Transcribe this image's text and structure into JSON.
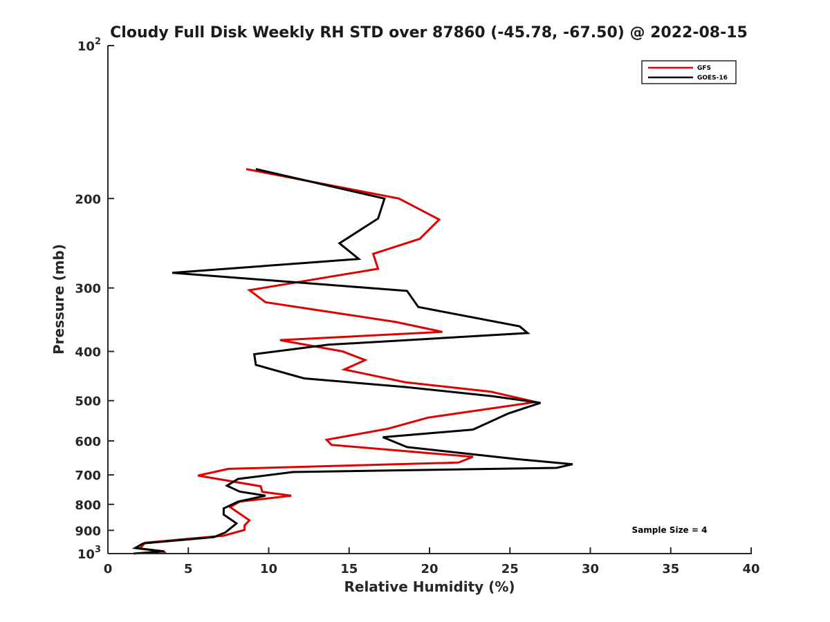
{
  "chart_data": {
    "type": "line",
    "title": "Cloudy Full Disk Weekly RH STD over 87860 (-45.78, -67.50) @ 2022-08-15",
    "xlabel": "Relative Humidity (%)",
    "ylabel": "Pressure (mb)",
    "xlim": [
      0,
      40
    ],
    "ylim": [
      1000,
      100
    ],
    "yscale": "log",
    "y_reversed": true,
    "grid": false,
    "legend_position": "top-right",
    "x_ticks": [
      "0",
      "5",
      "10",
      "15",
      "20",
      "25",
      "30",
      "35",
      "40"
    ],
    "y_ticks": [
      {
        "value": 100,
        "base": "10",
        "exp": "2"
      },
      {
        "value": 200,
        "label": "200"
      },
      {
        "value": 300,
        "label": "300"
      },
      {
        "value": 400,
        "label": "400"
      },
      {
        "value": 500,
        "label": "500"
      },
      {
        "value": 600,
        "label": "600"
      },
      {
        "value": 700,
        "label": "700"
      },
      {
        "value": 800,
        "label": "800"
      },
      {
        "value": 900,
        "label": "900"
      },
      {
        "value": 1000,
        "base": "10",
        "exp": "3"
      }
    ],
    "annotation": "Sample Size = 4",
    "series": [
      {
        "name": "GFS",
        "color": "#e00000",
        "points": [
          [
            8.6,
            175
          ],
          [
            18.1,
            200
          ],
          [
            20.6,
            220
          ],
          [
            19.4,
            240
          ],
          [
            16.5,
            257
          ],
          [
            16.8,
            275
          ],
          [
            8.8,
            303
          ],
          [
            9.8,
            320
          ],
          [
            17.9,
            350
          ],
          [
            20.8,
            366
          ],
          [
            10.7,
            380
          ],
          [
            14.6,
            400
          ],
          [
            16.0,
            416
          ],
          [
            14.7,
            434
          ],
          [
            18.5,
            460
          ],
          [
            23.8,
            480
          ],
          [
            26.6,
            503
          ],
          [
            19.9,
            540
          ],
          [
            17.4,
            568
          ],
          [
            13.6,
            597
          ],
          [
            13.9,
            611
          ],
          [
            22.7,
            645
          ],
          [
            21.8,
            662
          ],
          [
            7.5,
            681
          ],
          [
            5.6,
            702
          ],
          [
            9.5,
            737
          ],
          [
            9.6,
            756
          ],
          [
            11.4,
            769
          ],
          [
            8.2,
            790
          ],
          [
            7.6,
            810
          ],
          [
            8.8,
            860
          ],
          [
            8.5,
            880
          ],
          [
            8.5,
            898
          ],
          [
            7.2,
            922
          ],
          [
            2.3,
            952
          ],
          [
            2.0,
            978
          ],
          [
            3.5,
            992
          ],
          [
            3.6,
            1000
          ]
        ]
      },
      {
        "name": "GOES-16",
        "color": "#000000",
        "points": [
          [
            9.2,
            175
          ],
          [
            17.2,
            200
          ],
          [
            16.8,
            219
          ],
          [
            14.4,
            245
          ],
          [
            15.6,
            263
          ],
          [
            4.0,
            280
          ],
          [
            18.6,
            304
          ],
          [
            19.3,
            327
          ],
          [
            25.6,
            357
          ],
          [
            26.1,
            368
          ],
          [
            13.7,
            388
          ],
          [
            9.1,
            405
          ],
          [
            9.2,
            425
          ],
          [
            12.2,
            452
          ],
          [
            18.5,
            470
          ],
          [
            23.9,
            490
          ],
          [
            26.9,
            505
          ],
          [
            24.9,
            530
          ],
          [
            22.7,
            570
          ],
          [
            17.1,
            590
          ],
          [
            18.6,
            617
          ],
          [
            25.3,
            651
          ],
          [
            28.9,
            667
          ],
          [
            27.9,
            678
          ],
          [
            11.5,
            691
          ],
          [
            8.1,
            713
          ],
          [
            7.4,
            735
          ],
          [
            8.2,
            755
          ],
          [
            9.8,
            769
          ],
          [
            8.1,
            790
          ],
          [
            7.2,
            815
          ],
          [
            7.2,
            838
          ],
          [
            8.0,
            872
          ],
          [
            7.3,
            909
          ],
          [
            6.6,
            928
          ],
          [
            2.2,
            955
          ],
          [
            1.7,
            975
          ],
          [
            3.5,
            990
          ],
          [
            1.6,
            1000
          ]
        ]
      }
    ]
  }
}
